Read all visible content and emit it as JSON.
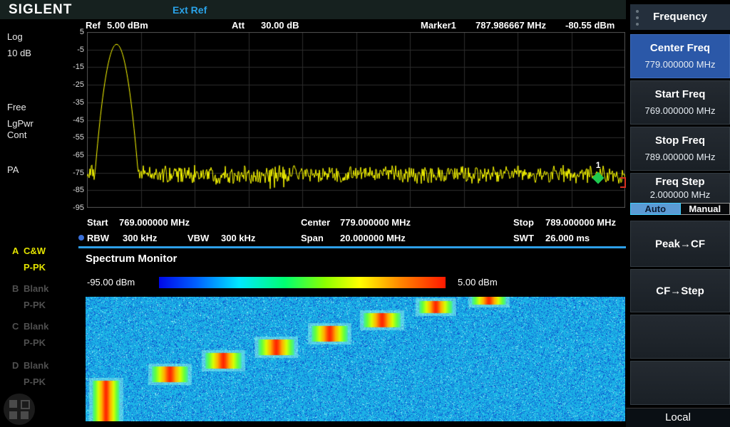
{
  "brand": "SIGLENT",
  "status_bar": {
    "ext_ref": "Ext Ref"
  },
  "left_panel": {
    "amp_scale_line1": "Log",
    "amp_scale_line2": "10 dB",
    "trigger_line1": "Free",
    "trigger_line2": "LgPwr",
    "trigger_line3": "Cont",
    "preamp": "PA",
    "traces": [
      {
        "id": "A",
        "mode": "C&W",
        "detector": "P-PK",
        "active": true
      },
      {
        "id": "B",
        "mode": "Blank",
        "detector": "P-PK",
        "active": false
      },
      {
        "id": "C",
        "mode": "Blank",
        "detector": "P-PK",
        "active": false
      },
      {
        "id": "D",
        "mode": "Blank",
        "detector": "P-PK",
        "active": false
      }
    ]
  },
  "header": {
    "ref_label": "Ref",
    "ref_value": "5.00 dBm",
    "att_label": "Att",
    "att_value": "30.00 dB",
    "marker_label": "Marker1",
    "marker_freq": "787.986667 MHz",
    "marker_amp": "-80.55 dBm"
  },
  "axis": {
    "y_labels": [
      "5",
      "-5",
      "-15",
      "-25",
      "-35",
      "-45",
      "-55",
      "-65",
      "-75",
      "-85",
      "-95"
    ]
  },
  "freq_row": {
    "start_label": "Start",
    "start_value": "769.000000 MHz",
    "center_label": "Center",
    "center_value": "779.000000 MHz",
    "stop_label": "Stop",
    "stop_value": "789.000000 MHz"
  },
  "bw_row": {
    "rbw_label": "RBW",
    "rbw_value": "300 kHz",
    "vbw_label": "VBW",
    "vbw_value": "300 kHz",
    "span_label": "Span",
    "span_value": "20.000000 MHz",
    "swt_label": "SWT",
    "swt_value": "26.000 ms"
  },
  "monitor": {
    "title": "Spectrum Monitor",
    "scale_min": "-95.00 dBm",
    "scale_max": "5.00 dBm"
  },
  "marker_indicator": {
    "number": "1"
  },
  "menu": {
    "title": "Frequency",
    "items": [
      {
        "label": "Center Freq",
        "value": "779.000000 MHz"
      },
      {
        "label": "Start Freq",
        "value": "769.000000 MHz"
      },
      {
        "label": "Stop Freq",
        "value": "789.000000 MHz"
      },
      {
        "label": "Freq Step",
        "value": "2.000000 MHz"
      }
    ],
    "freq_step_toggle": {
      "auto": "Auto",
      "manual": "Manual",
      "selected": "Auto"
    },
    "actions": [
      {
        "label": "Peak→CF"
      },
      {
        "label": "CF→Step"
      }
    ],
    "local": "Local"
  },
  "colors": {
    "accent_blue": "#2d9fe8",
    "active_button_blue": "#2b58a8",
    "trace_yellow": "#ffff00",
    "marker_green": "#1ecb4f",
    "ext_ref_blue": "#2aa3e8",
    "auto_selected_blue": "#5b9bd5"
  },
  "chart_data": {
    "type": "line+heatmap",
    "spectrum": {
      "x_start_mhz": 769.0,
      "x_stop_mhz": 789.0,
      "ylim_dbm": [
        -95,
        5
      ],
      "db_per_div": 10,
      "noise_floor_dbm": -76,
      "noise_spread_db": 3.5,
      "peak": {
        "freq_mhz": 770.1,
        "amp_dbm": -2.0,
        "rolloff_db_per_mhz2": 114
      },
      "marker": {
        "n": 1,
        "freq_mhz": 787.986667,
        "amp_dbm": -80.55
      }
    },
    "spectrogram": {
      "x_start_mhz": 769.0,
      "x_stop_mhz": 789.0,
      "scale_min_dbm": -95,
      "scale_max_dbm": 5,
      "hops": [
        {
          "x": 0.013,
          "y": 0.674,
          "w": 0.05,
          "h": 0.326
        },
        {
          "x": 0.123,
          "y": 0.56,
          "w": 0.067,
          "h": 0.126
        },
        {
          "x": 0.222,
          "y": 0.451,
          "w": 0.067,
          "h": 0.126
        },
        {
          "x": 0.32,
          "y": 0.343,
          "w": 0.067,
          "h": 0.126
        },
        {
          "x": 0.419,
          "y": 0.234,
          "w": 0.067,
          "h": 0.126
        },
        {
          "x": 0.515,
          "y": 0.131,
          "w": 0.069,
          "h": 0.114
        },
        {
          "x": 0.618,
          "y": 0.034,
          "w": 0.062,
          "h": 0.097
        },
        {
          "x": 0.716,
          "y": 0.0,
          "w": 0.063,
          "h": 0.063
        }
      ]
    }
  }
}
